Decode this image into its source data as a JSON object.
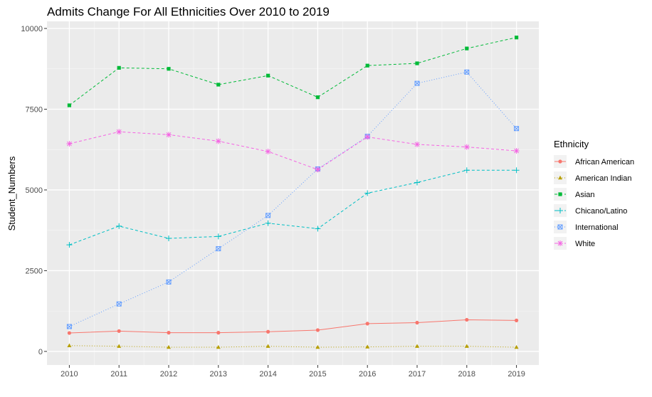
{
  "chart_data": {
    "type": "line",
    "title": "Admits Change For All Ethnicities Over 2010 to 2019",
    "xlabel": "",
    "ylabel": "Student_Numbers",
    "x": [
      2010,
      2011,
      2012,
      2013,
      2014,
      2015,
      2016,
      2017,
      2018,
      2019
    ],
    "xticks": [
      "2010",
      "2011",
      "2012",
      "2013",
      "2014",
      "2015",
      "2016",
      "2017",
      "2018",
      "2019"
    ],
    "ylim": [
      -420,
      10220
    ],
    "yticks": [
      0,
      2500,
      5000,
      7500,
      10000
    ],
    "yticklabels": [
      "0",
      "2500",
      "5000",
      "7500",
      "10000"
    ],
    "grid": true,
    "legend_title": "Ethnicity",
    "legend_position": "right",
    "series": [
      {
        "name": "African American",
        "color": "#F8766D",
        "linestyle": "solid",
        "marker": "circle",
        "values": [
          570,
          630,
          580,
          580,
          610,
          660,
          860,
          890,
          980,
          960
        ]
      },
      {
        "name": "American Indian",
        "color": "#B79F00",
        "linestyle": "dotted",
        "marker": "triangle",
        "values": [
          180,
          160,
          130,
          130,
          160,
          130,
          140,
          160,
          160,
          130
        ]
      },
      {
        "name": "Asian",
        "color": "#00BA38",
        "linestyle": "dashed",
        "marker": "square",
        "values": [
          7620,
          8780,
          8750,
          8260,
          8540,
          7870,
          8850,
          8920,
          9380,
          9720
        ]
      },
      {
        "name": "Chicano/Latino",
        "color": "#00BFC4",
        "linestyle": "dashed",
        "marker": "plus",
        "values": [
          3300,
          3880,
          3500,
          3560,
          3970,
          3800,
          4900,
          5230,
          5610,
          5610
        ]
      },
      {
        "name": "International",
        "color": "#619CFF",
        "linestyle": "dotted",
        "marker": "square-cross",
        "values": [
          770,
          1470,
          2150,
          3180,
          4210,
          5650,
          6660,
          8300,
          8650,
          6900
        ]
      },
      {
        "name": "White",
        "color": "#F564E3",
        "linestyle": "dashed",
        "marker": "asterisk",
        "values": [
          6430,
          6800,
          6710,
          6510,
          6190,
          5630,
          6640,
          6410,
          6330,
          6210
        ]
      }
    ]
  }
}
